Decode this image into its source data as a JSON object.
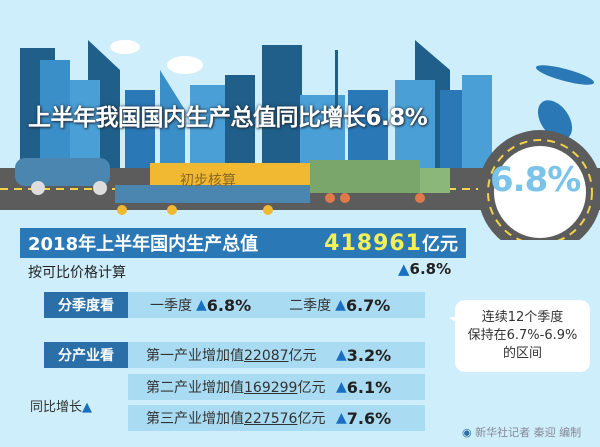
{
  "title": "上半年我国国内生产总值同比增长6.8%",
  "truck_label": "初步核算",
  "badge_value": "6.8%",
  "gdp": {
    "label": "2018年上半年国内生产总值",
    "value": "418961",
    "unit": "亿元"
  },
  "comparable": {
    "label": "按可比价格计算",
    "growth": "6.8%"
  },
  "quarter": {
    "tag": "分季度看",
    "items": [
      {
        "label": "一季度",
        "growth": "6.8%"
      },
      {
        "label": "二季度",
        "growth": "6.7%"
      }
    ]
  },
  "industry": {
    "tag": "分产业看",
    "items": [
      {
        "label": "第一产业增加值",
        "value": "22087",
        "unit": "亿元",
        "growth": "3.2%"
      },
      {
        "label": "第二产业增加值",
        "value": "169299",
        "unit": "亿元",
        "growth": "6.1%"
      },
      {
        "label": "第三产业增加值",
        "value": "227576",
        "unit": "亿元",
        "growth": "7.6%"
      }
    ]
  },
  "yoy_label": "同比增长",
  "bubble": {
    "line1": "连续12个季度",
    "line2": "保持在6.7%-6.9%",
    "line3": "的区间"
  },
  "credit": "新华社记者 秦迎 编制",
  "colors": {
    "background": "#cdeefa",
    "bar": "#2a78b6",
    "highlight": "#f2ef5a",
    "triangle": "#1a6fc0"
  }
}
